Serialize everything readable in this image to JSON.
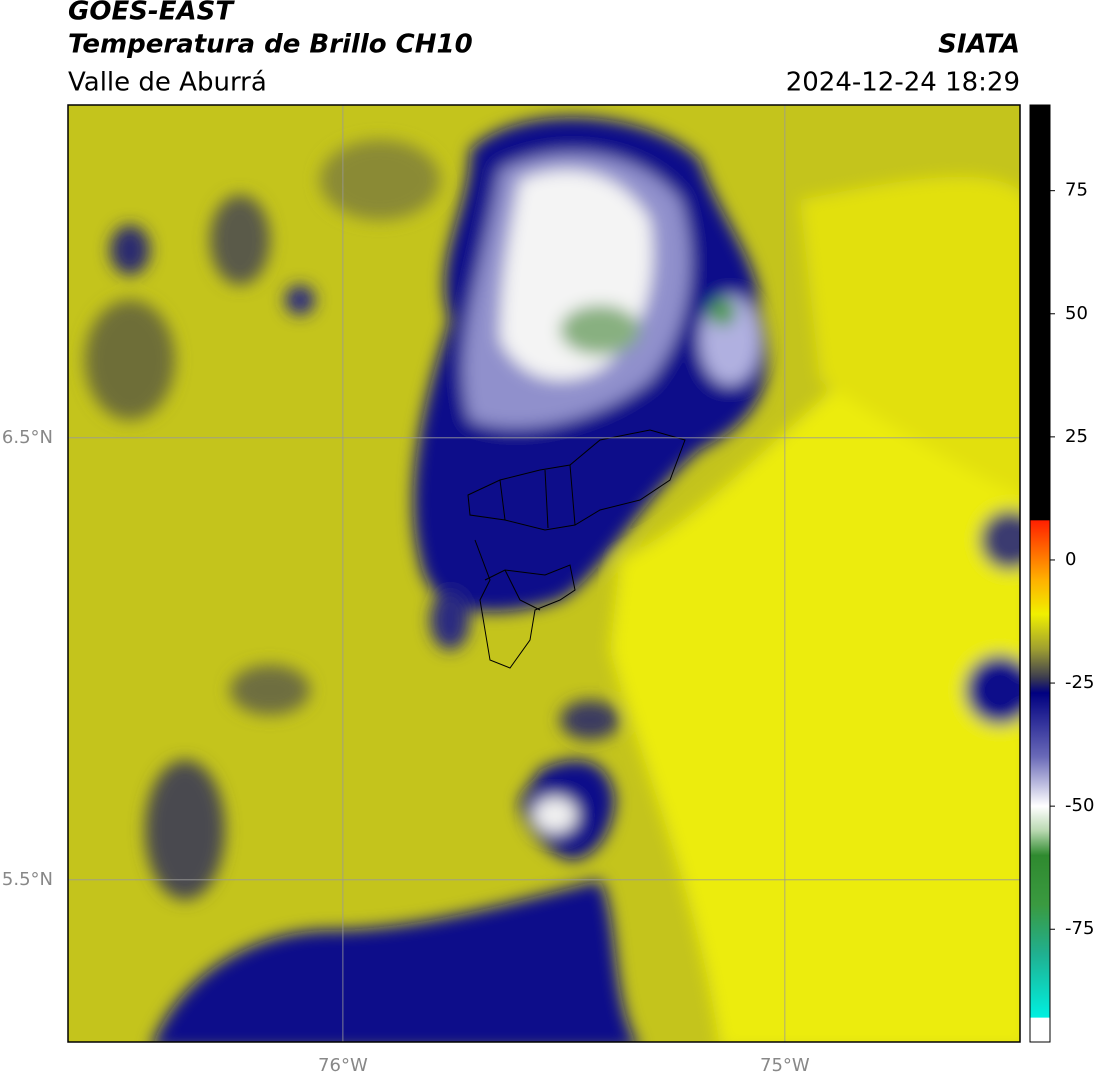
{
  "header": {
    "satellite": "GOES-EAST",
    "product": "Temperatura de Brillo CH10",
    "region": "Valle de Aburrá",
    "source": "SIATA",
    "datetime": "2024-12-24 18:29"
  },
  "map": {
    "xlim": [
      -76.622,
      -74.468
    ],
    "ylim": [
      5.133,
      7.253
    ],
    "xticks": [
      {
        "value": -76,
        "label": "76°W"
      },
      {
        "value": -75,
        "label": "75°W"
      }
    ],
    "yticks": [
      {
        "value": 5.5,
        "label": "5.5°N"
      },
      {
        "value": 6.5,
        "label": "6.5°N"
      }
    ],
    "grid": true
  },
  "colorbar": {
    "lim": [
      -97.9,
      92.4
    ],
    "ticks": [
      -75,
      -50,
      -25,
      0,
      25,
      50,
      75
    ],
    "colors": [
      {
        "value": -97.9,
        "color": "#ffffff"
      },
      {
        "value": -93,
        "color": "#ffffff"
      },
      {
        "value": -92.9,
        "color": "#00f0e0"
      },
      {
        "value": -80,
        "color": "#20b090"
      },
      {
        "value": -70,
        "color": "#3a9a40"
      },
      {
        "value": -60,
        "color": "#2f8a2f"
      },
      {
        "value": -55,
        "color": "#b8d8b0"
      },
      {
        "value": -50,
        "color": "#ffffff"
      },
      {
        "value": -40,
        "color": "#6a6ab8"
      },
      {
        "value": -27,
        "color": "#000080"
      },
      {
        "value": -24,
        "color": "#3a3a50"
      },
      {
        "value": -18,
        "color": "#a0a030"
      },
      {
        "value": -11,
        "color": "#f0f000"
      },
      {
        "value": -4,
        "color": "#ffb000"
      },
      {
        "value": 8,
        "color": "#ff2000"
      },
      {
        "value": 8.1,
        "color": "#000000"
      },
      {
        "value": 92.4,
        "color": "#000000"
      }
    ]
  }
}
